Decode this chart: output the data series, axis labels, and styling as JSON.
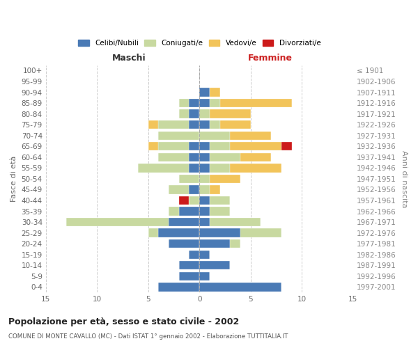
{
  "age_groups": [
    "0-4",
    "5-9",
    "10-14",
    "15-19",
    "20-24",
    "25-29",
    "30-34",
    "35-39",
    "40-44",
    "45-49",
    "50-54",
    "55-59",
    "60-64",
    "65-69",
    "70-74",
    "75-79",
    "80-84",
    "85-89",
    "90-94",
    "95-99",
    "100+"
  ],
  "birth_years": [
    "1997-2001",
    "1992-1996",
    "1987-1991",
    "1982-1986",
    "1977-1981",
    "1972-1976",
    "1967-1971",
    "1962-1966",
    "1957-1961",
    "1952-1956",
    "1947-1951",
    "1942-1946",
    "1937-1941",
    "1932-1936",
    "1927-1931",
    "1922-1926",
    "1917-1921",
    "1912-1916",
    "1907-1911",
    "1902-1906",
    "≤ 1901"
  ],
  "maschi_celibi": [
    4,
    2,
    2,
    1,
    3,
    4,
    3,
    2,
    0,
    1,
    0,
    1,
    1,
    1,
    0,
    1,
    1,
    1,
    0,
    0,
    0
  ],
  "maschi_coniugati": [
    0,
    0,
    0,
    0,
    0,
    1,
    10,
    1,
    1,
    2,
    2,
    5,
    3,
    3,
    4,
    3,
    1,
    1,
    0,
    0,
    0
  ],
  "maschi_vedovi": [
    0,
    0,
    0,
    0,
    0,
    0,
    0,
    0,
    0,
    0,
    0,
    0,
    0,
    1,
    0,
    1,
    0,
    0,
    0,
    0,
    0
  ],
  "maschi_divorziati": [
    0,
    0,
    0,
    0,
    0,
    0,
    0,
    0,
    1,
    0,
    0,
    0,
    0,
    0,
    0,
    0,
    0,
    0,
    0,
    0,
    0
  ],
  "femmine_celibi": [
    8,
    1,
    3,
    1,
    3,
    4,
    1,
    1,
    1,
    0,
    0,
    1,
    1,
    1,
    0,
    1,
    0,
    1,
    1,
    0,
    0
  ],
  "femmine_coniugati": [
    0,
    0,
    0,
    0,
    1,
    4,
    5,
    2,
    2,
    1,
    1,
    2,
    3,
    2,
    3,
    1,
    1,
    1,
    0,
    0,
    0
  ],
  "femmine_vedovi": [
    0,
    0,
    0,
    0,
    0,
    0,
    0,
    0,
    0,
    1,
    3,
    5,
    3,
    5,
    4,
    3,
    4,
    7,
    1,
    0,
    0
  ],
  "femmine_divorziati": [
    0,
    0,
    0,
    0,
    0,
    0,
    0,
    0,
    0,
    0,
    0,
    0,
    0,
    1,
    0,
    0,
    0,
    0,
    0,
    0,
    0
  ],
  "color_celibi": "#4a7ab5",
  "color_coniugati": "#c8d9a0",
  "color_vedovi": "#f2c45a",
  "color_divorziati": "#cc1a1a",
  "xlim": 15,
  "title": "Popolazione per età, sesso e stato civile - 2002",
  "subtitle": "COMUNE DI MONTE CAVALLO (MC) - Dati ISTAT 1° gennaio 2002 - Elaborazione TUTTITALIA.IT",
  "label_maschi": "Maschi",
  "label_femmine": "Femmine",
  "ylabel_left": "Fasce di età",
  "ylabel_right": "Anni di nascita",
  "legend_celibi": "Celibi/Nubili",
  "legend_coniugati": "Coniugati/e",
  "legend_vedovi": "Vedovi/e",
  "legend_divorziati": "Divorziati/e",
  "bg_color": "#ffffff",
  "grid_color": "#cccccc"
}
